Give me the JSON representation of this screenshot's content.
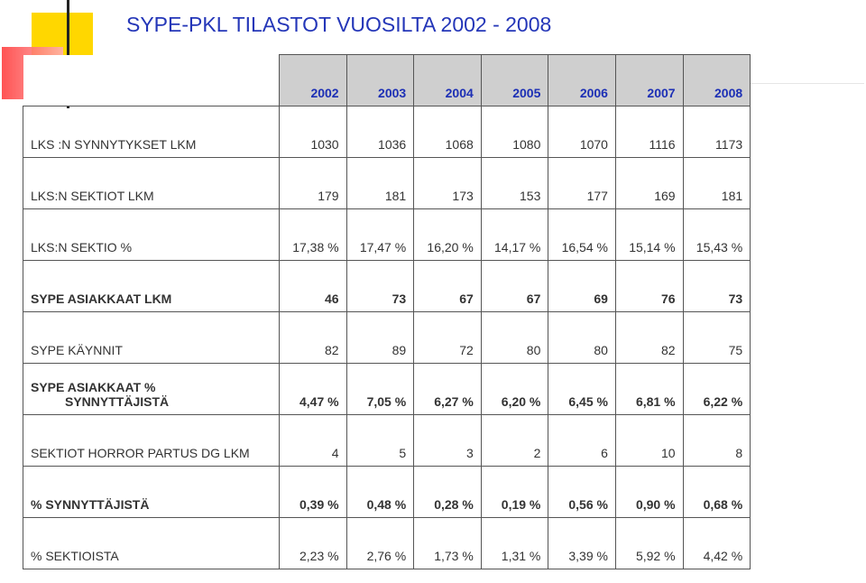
{
  "header": {
    "title": "SYPE-PKL TILASTOT VUOSILTA 2002 - 2008"
  },
  "table": {
    "columns": [
      "2002",
      "2003",
      "2004",
      "2005",
      "2006",
      "2007",
      "2008"
    ],
    "rows": [
      {
        "label": [
          "LKS :N SYNNYTYKSET LKM"
        ],
        "bold": false,
        "values": [
          "1030",
          "1036",
          "1068",
          "1080",
          "1070",
          "1116",
          "1173"
        ]
      },
      {
        "label": [
          "LKS:N SEKTIOT LKM"
        ],
        "bold": false,
        "values": [
          "179",
          "181",
          "173",
          "153",
          "177",
          "169",
          "181"
        ]
      },
      {
        "label": [
          "LKS:N SEKTIO %"
        ],
        "bold": false,
        "values": [
          "17,38 %",
          "17,47 %",
          "16,20 %",
          "14,17 %",
          "16,54 %",
          "15,14 %",
          "15,43 %"
        ]
      },
      {
        "label": [
          "SYPE ASIAKKAAT LKM"
        ],
        "bold": true,
        "values": [
          "46",
          "73",
          "67",
          "67",
          "69",
          "76",
          "73"
        ]
      },
      {
        "label": [
          "SYPE KÄYNNIT"
        ],
        "bold": false,
        "values": [
          "82",
          "89",
          "72",
          "80",
          "80",
          "82",
          "75"
        ]
      },
      {
        "label": [
          "SYPE ASIAKKAAT %",
          "SYNNYTTÄJISTÄ"
        ],
        "bold": true,
        "values": [
          "4,47 %",
          "7,05 %",
          "6,27 %",
          "6,20 %",
          "6,45 %",
          "6,81 %",
          "6,22 %"
        ]
      },
      {
        "label": [
          "SEKTIOT HORROR PARTUS DG LKM"
        ],
        "bold": false,
        "values": [
          "4",
          "5",
          "3",
          "2",
          "6",
          "10",
          "8"
        ]
      },
      {
        "label": [
          "% SYNNYTTÄJISTÄ"
        ],
        "bold": true,
        "values": [
          "0,39 %",
          "0,48 %",
          "0,28 %",
          "0,19 %",
          "0,56 %",
          "0,90 %",
          "0,68 %"
        ]
      },
      {
        "label": [
          "% SEKTIOISTA"
        ],
        "bold": false,
        "values": [
          "2,23 %",
          "2,76 %",
          "1,73 %",
          "1,31 %",
          "3,39 %",
          "5,92 %",
          "4,42 %"
        ]
      }
    ]
  }
}
